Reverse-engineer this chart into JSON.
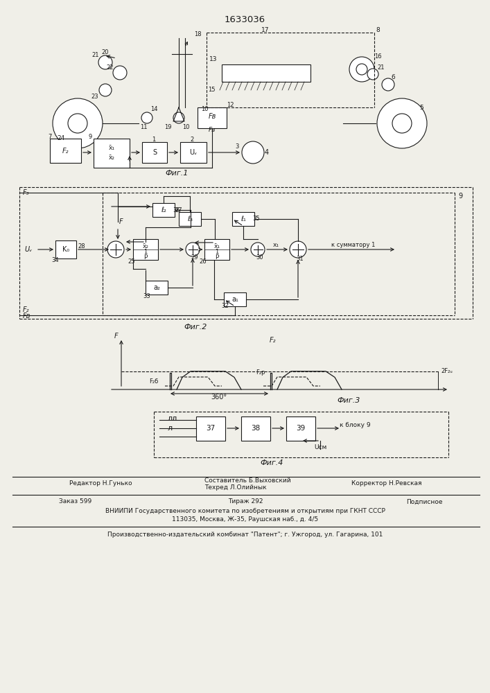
{
  "title": "1633036",
  "bg_color": "#f0efe8",
  "line_color": "#1a1a1a",
  "fig1_label": "Фиг.1",
  "fig2_label": "Фиг.2",
  "fig3_label": "Фиг.3",
  "fig4_label": "Фиг.4",
  "footer_editor": "Редактор Н.Гунько",
  "footer_comp": "Составитель Б.Выховский",
  "footer_tech": "Техред Л.Олийнык",
  "footer_corr": "Корректор Н.Ревская",
  "footer_order": "Заказ 599",
  "footer_tirazh": "Тираж 292",
  "footer_podp": "Подписное",
  "footer_vniip1": "ВНИИПИ Государственного комитета по изобретениям и открытиям при ГКНТ СССР",
  "footer_vniip2": "113035, Москва, Ж-35, Раушская наб., д. 4/5",
  "footer_prod": "Производственно-издательский комбинат \"Патент\"; г. Ужгород, ул. Гагарина, 101"
}
